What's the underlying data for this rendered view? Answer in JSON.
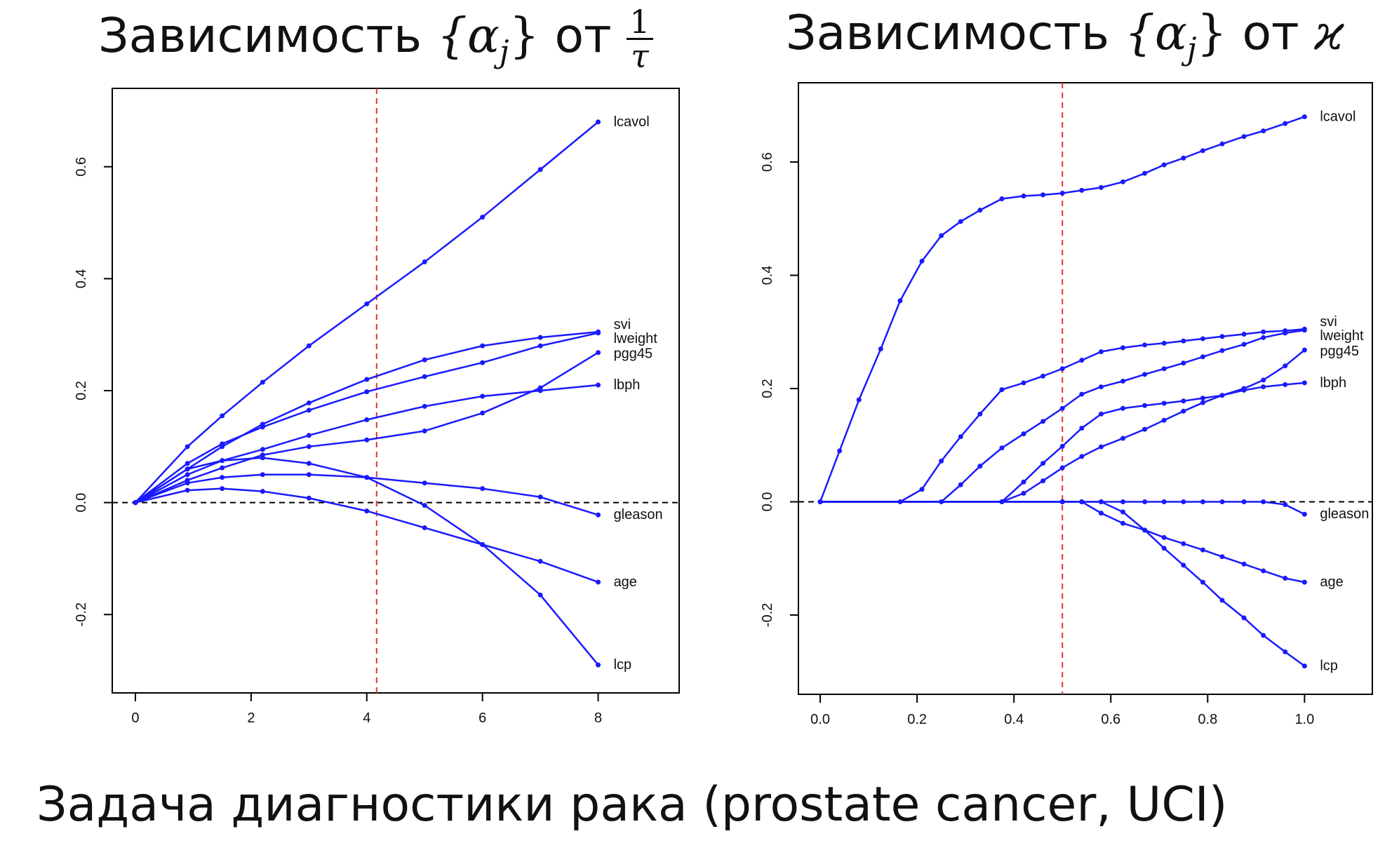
{
  "titles": {
    "left_prefix": "Зависимость ",
    "left_set": "{α",
    "left_sub": "j",
    "left_set_close": "}",
    "left_mid": " от ",
    "left_frac_num": "1",
    "left_frac_den": "τ",
    "right_prefix": "Зависимость ",
    "right_set": "{α",
    "right_sub": "j",
    "right_set_close": "}",
    "right_mid": " от ",
    "right_symbol": "ϰ"
  },
  "caption": "Задача диагностики рака (prostate cancer, UCI)",
  "colors": {
    "series": "#1a1aff",
    "reference_line": "#e83030",
    "zero_line": "#000000",
    "axis": "#000000",
    "text": "#111111"
  },
  "chart_data": [
    {
      "type": "line",
      "x_range": [
        -0.4,
        9.4
      ],
      "ylim": [
        -0.34,
        0.74
      ],
      "xticks": [
        0,
        2,
        4,
        6,
        8
      ],
      "xtick_labels": [
        "0",
        "2",
        "4",
        "6",
        "8"
      ],
      "yticks": [
        -0.2,
        0.0,
        0.2,
        0.4,
        0.6
      ],
      "ytick_labels": [
        "-0.2",
        "0.0",
        "0.2",
        "0.4",
        "0.6"
      ],
      "vline": 4.17,
      "hline": 0,
      "series": [
        {
          "name": "lcavol",
          "x": [
            0,
            0.9,
            1.5,
            2.2,
            3.0,
            4.0,
            5.0,
            6.0,
            7.0,
            8.0
          ],
          "y": [
            0,
            0.1,
            0.155,
            0.215,
            0.28,
            0.355,
            0.43,
            0.51,
            0.595,
            0.68
          ]
        },
        {
          "name": "svi",
          "x": [
            0,
            0.9,
            1.5,
            2.2,
            3.0,
            4.0,
            5.0,
            6.0,
            7.0,
            8.0
          ],
          "y": [
            0,
            0.06,
            0.1,
            0.14,
            0.178,
            0.22,
            0.255,
            0.28,
            0.295,
            0.305
          ]
        },
        {
          "name": "lweight",
          "x": [
            0,
            0.9,
            1.5,
            2.2,
            3.0,
            4.0,
            5.0,
            6.0,
            7.0,
            8.0
          ],
          "y": [
            0,
            0.07,
            0.105,
            0.135,
            0.165,
            0.198,
            0.225,
            0.25,
            0.28,
            0.303
          ]
        },
        {
          "name": "pgg45",
          "x": [
            0,
            0.9,
            1.5,
            2.2,
            3.0,
            4.0,
            5.0,
            6.0,
            7.0,
            8.0
          ],
          "y": [
            0,
            0.04,
            0.062,
            0.085,
            0.1,
            0.112,
            0.128,
            0.16,
            0.205,
            0.268
          ]
        },
        {
          "name": "lbph",
          "x": [
            0,
            0.9,
            1.5,
            2.2,
            3.0,
            4.0,
            5.0,
            6.0,
            7.0,
            8.0
          ],
          "y": [
            0,
            0.05,
            0.075,
            0.095,
            0.12,
            0.148,
            0.172,
            0.19,
            0.2,
            0.21
          ]
        },
        {
          "name": "gleason",
          "x": [
            0,
            0.9,
            1.5,
            2.2,
            3.0,
            4.0,
            5.0,
            6.0,
            7.0,
            8.0
          ],
          "y": [
            0,
            0.035,
            0.045,
            0.05,
            0.05,
            0.045,
            0.035,
            0.025,
            0.01,
            -0.022
          ]
        },
        {
          "name": "age",
          "x": [
            0,
            0.9,
            1.5,
            2.2,
            3.0,
            4.0,
            5.0,
            6.0,
            7.0,
            8.0
          ],
          "y": [
            0,
            0.022,
            0.025,
            0.02,
            0.008,
            -0.015,
            -0.045,
            -0.075,
            -0.105,
            -0.142
          ]
        },
        {
          "name": "lcp",
          "x": [
            0,
            0.9,
            1.5,
            2.2,
            3.0,
            4.0,
            5.0,
            6.0,
            7.0,
            8.0
          ],
          "y": [
            0,
            0.06,
            0.075,
            0.08,
            0.07,
            0.045,
            -0.005,
            -0.075,
            -0.165,
            -0.29
          ]
        }
      ],
      "labels": [
        "lcavol",
        "svi",
        "lweight",
        "pgg45",
        "lbph",
        "gleason",
        "age",
        "lcp"
      ]
    },
    {
      "type": "line",
      "x_range": [
        -0.045,
        1.14
      ],
      "ylim": [
        -0.34,
        0.74
      ],
      "xticks": [
        0.0,
        0.2,
        0.4,
        0.6,
        0.8,
        1.0
      ],
      "xtick_labels": [
        "0.0",
        "0.2",
        "0.4",
        "0.6",
        "0.8",
        "1.0"
      ],
      "yticks": [
        -0.2,
        0.0,
        0.2,
        0.4,
        0.6
      ],
      "ytick_labels": [
        "-0.2",
        "0.0",
        "0.2",
        "0.4",
        "0.6"
      ],
      "vline": 0.5,
      "hline": 0,
      "series": [
        {
          "name": "lcavol",
          "x": [
            0,
            0.04,
            0.08,
            0.125,
            0.165,
            0.21,
            0.25,
            0.29,
            0.33,
            0.375,
            0.42,
            0.46,
            0.5,
            0.54,
            0.58,
            0.625,
            0.67,
            0.71,
            0.75,
            0.79,
            0.83,
            0.875,
            0.915,
            0.96,
            1.0
          ],
          "y": [
            0,
            0.09,
            0.18,
            0.27,
            0.355,
            0.425,
            0.47,
            0.495,
            0.515,
            0.535,
            0.54,
            0.542,
            0.545,
            0.55,
            0.555,
            0.565,
            0.58,
            0.595,
            0.607,
            0.62,
            0.632,
            0.645,
            0.655,
            0.668,
            0.68
          ]
        },
        {
          "name": "svi",
          "x": [
            0,
            0.165,
            0.21,
            0.25,
            0.29,
            0.33,
            0.375,
            0.42,
            0.46,
            0.5,
            0.54,
            0.58,
            0.625,
            0.67,
            0.71,
            0.75,
            0.79,
            0.83,
            0.875,
            0.915,
            0.96,
            1.0
          ],
          "y": [
            0,
            0,
            0.022,
            0.072,
            0.115,
            0.155,
            0.198,
            0.21,
            0.222,
            0.235,
            0.25,
            0.265,
            0.272,
            0.277,
            0.28,
            0.284,
            0.288,
            0.292,
            0.296,
            0.3,
            0.302,
            0.305
          ]
        },
        {
          "name": "lweight",
          "x": [
            0,
            0.25,
            0.29,
            0.33,
            0.375,
            0.42,
            0.46,
            0.5,
            0.54,
            0.58,
            0.625,
            0.67,
            0.71,
            0.75,
            0.79,
            0.83,
            0.875,
            0.915,
            0.96,
            1.0
          ],
          "y": [
            0,
            0,
            0.03,
            0.063,
            0.095,
            0.12,
            0.142,
            0.165,
            0.19,
            0.203,
            0.213,
            0.225,
            0.235,
            0.245,
            0.256,
            0.267,
            0.278,
            0.29,
            0.298,
            0.303
          ]
        },
        {
          "name": "pgg45",
          "x": [
            0,
            0.375,
            0.42,
            0.46,
            0.5,
            0.54,
            0.58,
            0.625,
            0.67,
            0.71,
            0.75,
            0.79,
            0.83,
            0.875,
            0.915,
            0.96,
            1.0
          ],
          "y": [
            0,
            0,
            0.035,
            0.068,
            0.098,
            0.13,
            0.155,
            0.165,
            0.17,
            0.174,
            0.178,
            0.183,
            0.188,
            0.2,
            0.215,
            0.24,
            0.268
          ]
        },
        {
          "name": "lbph",
          "x": [
            0,
            0.375,
            0.42,
            0.46,
            0.5,
            0.54,
            0.58,
            0.625,
            0.67,
            0.71,
            0.75,
            0.79,
            0.83,
            0.875,
            0.915,
            0.96,
            1.0
          ],
          "y": [
            0,
            0,
            0.015,
            0.037,
            0.06,
            0.08,
            0.097,
            0.112,
            0.128,
            0.144,
            0.16,
            0.175,
            0.188,
            0.197,
            0.203,
            0.207,
            0.21
          ]
        },
        {
          "name": "gleason",
          "x": [
            0,
            0.5,
            0.54,
            0.58,
            0.625,
            0.67,
            0.71,
            0.75,
            0.79,
            0.83,
            0.875,
            0.915,
            0.96,
            1.0
          ],
          "y": [
            0,
            0,
            0,
            0,
            0,
            0,
            0,
            0,
            0,
            0,
            0,
            0,
            -0.005,
            -0.022
          ]
        },
        {
          "name": "age",
          "x": [
            0,
            0.5,
            0.54,
            0.58,
            0.625,
            0.67,
            0.71,
            0.75,
            0.79,
            0.83,
            0.875,
            0.915,
            0.96,
            1.0
          ],
          "y": [
            0,
            0,
            0,
            -0.02,
            -0.038,
            -0.05,
            -0.063,
            -0.074,
            -0.085,
            -0.097,
            -0.11,
            -0.122,
            -0.135,
            -0.142
          ]
        },
        {
          "name": "lcp",
          "x": [
            0,
            0.5,
            0.54,
            0.58,
            0.625,
            0.67,
            0.71,
            0.75,
            0.79,
            0.83,
            0.875,
            0.915,
            0.96,
            1.0
          ],
          "y": [
            0,
            0,
            0,
            0,
            -0.018,
            -0.05,
            -0.082,
            -0.112,
            -0.142,
            -0.174,
            -0.205,
            -0.236,
            -0.265,
            -0.29
          ]
        }
      ],
      "labels": [
        "lcavol",
        "svi",
        "lweight",
        "pgg45",
        "lbph",
        "gleason",
        "age",
        "lcp"
      ]
    }
  ]
}
